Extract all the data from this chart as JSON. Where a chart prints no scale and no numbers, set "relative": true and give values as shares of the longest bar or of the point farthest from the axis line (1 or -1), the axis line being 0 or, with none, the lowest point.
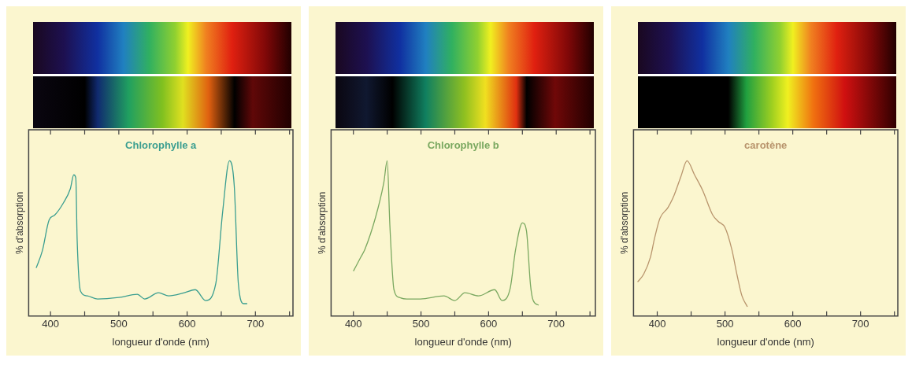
{
  "chart_data": [
    {
      "type": "line",
      "title": "Chlorophylle a",
      "xlabel": "longueur d'onde (nm)",
      "ylabel": "% d'absorption",
      "relative": true,
      "color": "#3a9e90",
      "xlim": [
        368,
        755
      ],
      "xticks": [
        400,
        {
          "value": 450,
          "label": null
        },
        500,
        {
          "value": 550,
          "label": null
        },
        600,
        {
          "value": 650,
          "label": null
        },
        700,
        {
          "value": 750,
          "label": null
        }
      ],
      "x": [
        379,
        388,
        398,
        406,
        419,
        429,
        434,
        437,
        439,
        444,
        454,
        469,
        500,
        527,
        538,
        558,
        573,
        596,
        612,
        627,
        642,
        652,
        662,
        669,
        675,
        683,
        688
      ],
      "values": [
        0.31,
        0.42,
        0.62,
        0.65,
        0.73,
        0.82,
        0.91,
        0.89,
        0.49,
        0.16,
        0.13,
        0.11,
        0.12,
        0.14,
        0.11,
        0.15,
        0.13,
        0.15,
        0.17,
        0.1,
        0.21,
        0.67,
        1,
        0.84,
        0.21,
        0.08,
        0.08
      ]
    },
    {
      "type": "line",
      "title": "Chlorophylle b",
      "xlabel": "longueur d'onde (nm)",
      "ylabel": "% d'absorption",
      "relative": true,
      "color": "#7aa860",
      "xlim": [
        367,
        758
      ],
      "xticks": [
        400,
        {
          "value": 450,
          "label": null
        },
        500,
        {
          "value": 550,
          "label": null
        },
        600,
        {
          "value": 650,
          "label": null
        },
        700,
        {
          "value": 750,
          "label": null
        }
      ],
      "x": [
        400,
        411,
        417,
        433,
        445,
        450,
        454,
        460,
        468,
        479,
        499,
        534,
        550,
        565,
        585,
        609,
        620,
        632,
        640,
        650,
        656,
        662,
        666,
        674
      ],
      "values": [
        0.29,
        0.38,
        0.43,
        0.64,
        0.86,
        1,
        0.58,
        0.17,
        0.12,
        0.11,
        0.11,
        0.13,
        0.1,
        0.15,
        0.13,
        0.17,
        0.1,
        0.18,
        0.43,
        0.6,
        0.55,
        0.2,
        0.1,
        0.07
      ]
    },
    {
      "type": "line",
      "title": "carotène",
      "xlabel": "longueur d'onde (nm)",
      "ylabel": "% d'absorption",
      "relative": true,
      "color": "#b8946c",
      "xlim": [
        365,
        755
      ],
      "xticks": [
        400,
        {
          "value": 450,
          "label": null
        },
        500,
        {
          "value": 550,
          "label": null
        },
        600,
        {
          "value": 650,
          "label": null
        },
        700,
        {
          "value": 750,
          "label": null
        }
      ],
      "x": [
        371,
        380,
        390,
        396,
        404,
        416,
        425,
        435,
        444,
        455,
        467,
        482,
        490,
        500,
        510,
        518,
        525,
        533
      ],
      "values": [
        0.22,
        0.27,
        0.38,
        0.5,
        0.63,
        0.7,
        0.78,
        0.9,
        1,
        0.91,
        0.81,
        0.65,
        0.61,
        0.57,
        0.43,
        0.26,
        0.13,
        0.06
      ]
    }
  ]
}
